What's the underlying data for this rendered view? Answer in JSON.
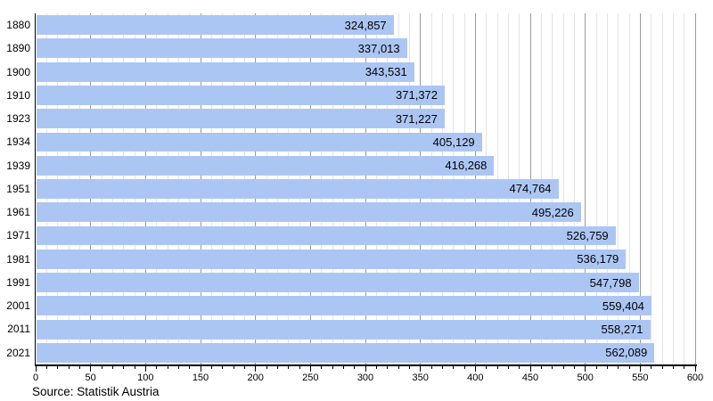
{
  "chart_data": {
    "type": "bar",
    "orientation": "horizontal",
    "categories": [
      "1880",
      "1890",
      "1900",
      "1910",
      "1923",
      "1934",
      "1939",
      "1951",
      "1961",
      "1971",
      "1981",
      "1991",
      "2001",
      "2011",
      "2021"
    ],
    "values": [
      324857,
      337013,
      343531,
      371372,
      371227,
      405129,
      416268,
      474764,
      495226,
      526759,
      536179,
      547798,
      559404,
      558271,
      562089
    ],
    "value_labels": [
      "324,857",
      "337,013",
      "343,531",
      "371,372",
      "371,227",
      "405,129",
      "416,268",
      "474,764",
      "495,226",
      "526,759",
      "536,179",
      "547,798",
      "559,404",
      "558,271",
      "562,089"
    ],
    "x_axis": {
      "min": 0,
      "max": 600,
      "unit_scale": "thousands",
      "minor_step": 10,
      "major_step": 50,
      "tick_labels": [
        "0",
        "50",
        "100",
        "150",
        "200",
        "250",
        "300",
        "350",
        "400",
        "450",
        "500",
        "550",
        "600"
      ]
    },
    "grid": "vertical; minor every 10, major every 50",
    "legend": ""
  },
  "footer": {
    "source": "Source: Statistik Austria"
  },
  "colors": {
    "bar": "#acc6f4",
    "minor_grid": "#e4e4e4",
    "major_grid": "#9a9a9a",
    "axis": "#000000",
    "text": "#000000",
    "background": "#ffffff"
  }
}
